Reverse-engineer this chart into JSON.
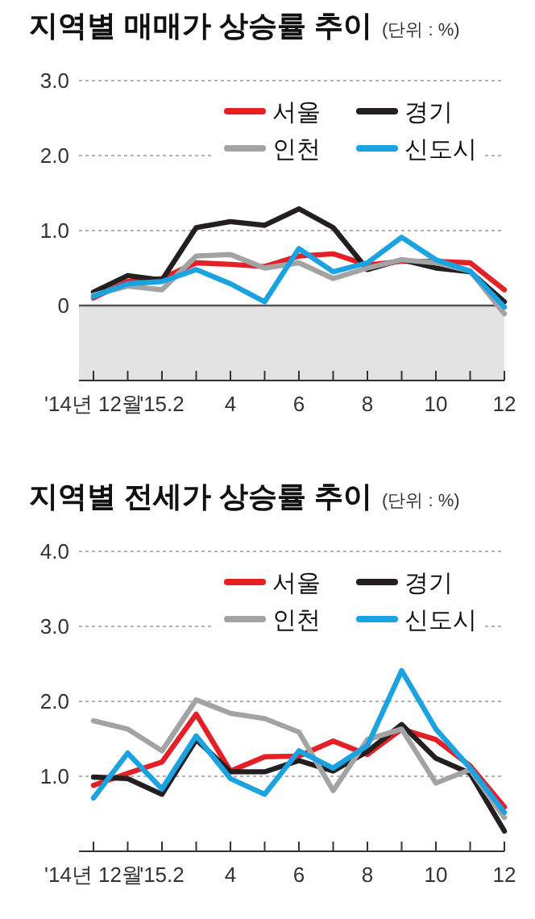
{
  "chart_data": [
    {
      "type": "line",
      "title": "지역별 매매가 상승률 추이",
      "subtitle": "(단위 : %)",
      "categories": [
        "'14년 12월",
        null,
        "'15.2",
        null,
        "4",
        null,
        "6",
        null,
        "8",
        null,
        "10",
        null,
        "12"
      ],
      "series": [
        {
          "name": "서울",
          "color": "#e41f26",
          "values": [
            0.1,
            0.32,
            0.36,
            0.57,
            0.55,
            0.52,
            0.66,
            0.69,
            0.54,
            0.59,
            0.59,
            0.57,
            0.21
          ]
        },
        {
          "name": "경기",
          "color": "#231f20",
          "values": [
            0.18,
            0.4,
            0.34,
            1.04,
            1.12,
            1.07,
            1.29,
            1.04,
            0.48,
            0.61,
            0.5,
            0.45,
            0.05
          ]
        },
        {
          "name": "인천",
          "color": "#a3a3a3",
          "values": [
            0.14,
            0.26,
            0.21,
            0.66,
            0.68,
            0.5,
            0.57,
            0.36,
            0.5,
            0.61,
            0.57,
            0.46,
            -0.11
          ]
        },
        {
          "name": "신도시",
          "color": "#1aa3e0",
          "values": [
            0.12,
            0.29,
            0.32,
            0.48,
            0.29,
            0.05,
            0.76,
            0.45,
            0.57,
            0.91,
            0.61,
            0.46,
            -0.02
          ]
        }
      ],
      "ylim": [
        -1,
        3
      ],
      "yticks": [
        0,
        {
          "value": 1,
          "label": "1.0"
        },
        {
          "value": 2,
          "label": "2.0"
        },
        {
          "value": 3,
          "label": "3.0"
        }
      ],
      "bands": [
        {
          "axis": "y",
          "from": -1,
          "to": 0,
          "color": "#e3e3e3"
        }
      ],
      "ref_lines": [
        {
          "axis": "y",
          "value": 0,
          "color": "#555555"
        }
      ],
      "grid": "y",
      "legend": "top right",
      "line_style": "solid",
      "marker": "none"
    },
    {
      "type": "line",
      "title": "지역별 전세가 상승률 추이",
      "subtitle": "(단위 : %)",
      "categories": [
        "'14년 12월",
        null,
        "'15.2",
        null,
        "4",
        null,
        "6",
        null,
        "8",
        null,
        "10",
        null,
        "12"
      ],
      "series": [
        {
          "name": "서울",
          "color": "#e41f26",
          "values": [
            0.88,
            1.04,
            1.19,
            1.83,
            1.07,
            1.26,
            1.27,
            1.47,
            1.29,
            1.63,
            1.49,
            1.14,
            0.59
          ]
        },
        {
          "name": "경기",
          "color": "#231f20",
          "values": [
            0.99,
            0.97,
            0.76,
            1.49,
            1.06,
            1.06,
            1.21,
            1.07,
            1.33,
            1.69,
            1.24,
            1.04,
            0.27
          ]
        },
        {
          "name": "인천",
          "color": "#a3a3a3",
          "values": [
            1.74,
            1.63,
            1.34,
            2.02,
            1.84,
            1.77,
            1.59,
            0.81,
            1.49,
            1.63,
            0.91,
            1.09,
            0.45
          ]
        },
        {
          "name": "신도시",
          "color": "#1aa3e0",
          "values": [
            0.71,
            1.31,
            0.83,
            1.54,
            0.97,
            0.76,
            1.34,
            1.11,
            1.41,
            2.41,
            1.63,
            1.11,
            0.52
          ]
        }
      ],
      "ylim": [
        0,
        4
      ],
      "yticks": [
        {
          "value": 1,
          "label": "1.0"
        },
        {
          "value": 2,
          "label": "2.0"
        },
        {
          "value": 3,
          "label": "3.0"
        },
        {
          "value": 4,
          "label": "4.0"
        }
      ],
      "grid": "y",
      "legend": "top right",
      "line_style": "solid",
      "marker": "none"
    }
  ]
}
